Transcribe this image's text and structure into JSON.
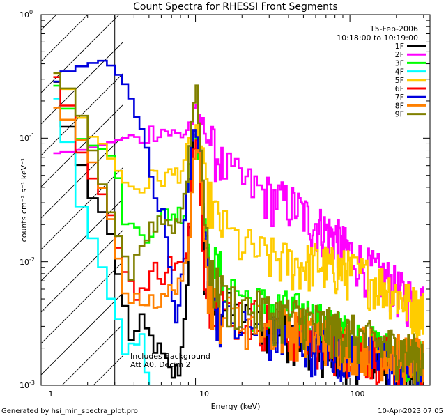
{
  "chart_data": {
    "type": "line",
    "title": "Count Spectra for RHESSI Front Segments",
    "xlabel": "Energy (keV)",
    "ylabel": "counts cm⁻² s⁻¹ keV⁻¹",
    "xscale": "log",
    "yscale": "log",
    "xlim": [
      1.0,
      330.0
    ],
    "ylim": [
      0.001,
      1.0
    ],
    "x_ticks": [
      "1",
      "10",
      "100"
    ],
    "y_ticks": [
      {
        "mantissa": "10",
        "exp": "0"
      },
      {
        "mantissa": "10",
        "exp": "-1"
      },
      {
        "mantissa": "10",
        "exp": "-2"
      },
      {
        "mantissa": "10",
        "exp": "-3"
      }
    ],
    "date": "15-Feb-2006",
    "time_range": "10:18:00 to 10:19:00",
    "annotation_line1": "Includes Background",
    "annotation_line2": "Att A0, Decim 2",
    "attenuator_cutoff_kev": 3.0,
    "series": [
      {
        "name": "1F",
        "color": "#000000",
        "pts": [
          [
            1.2,
            0.38
          ],
          [
            1.35,
            0.2
          ],
          [
            1.5,
            0.12
          ],
          [
            1.7,
            0.08
          ],
          [
            1.9,
            0.052
          ],
          [
            2.1,
            0.034
          ],
          [
            2.3,
            0.03
          ],
          [
            2.55,
            0.024
          ],
          [
            2.8,
            0.018
          ],
          [
            3.1,
            0.009
          ],
          [
            3.4,
            0.005
          ],
          [
            3.7,
            0.0028
          ],
          [
            4.0,
            0.0022
          ],
          [
            4.4,
            0.0033
          ],
          [
            5.0,
            0.0025
          ],
          [
            6.0,
            0.0018
          ],
          [
            7.0,
            0.0012
          ],
          [
            8.0,
            0.0014
          ],
          [
            9.0,
            0.01
          ],
          [
            9.7,
            0.09
          ],
          [
            10.3,
            0.15
          ],
          [
            10.8,
            0.05
          ],
          [
            11.5,
            0.006
          ],
          [
            13,
            0.004
          ],
          [
            16,
            0.004
          ],
          [
            20,
            0.0035
          ],
          [
            25,
            0.003
          ],
          [
            35,
            0.0028
          ],
          [
            50,
            0.0025
          ],
          [
            70,
            0.002
          ],
          [
            100,
            0.0018
          ],
          [
            150,
            0.0017
          ],
          [
            200,
            0.0014
          ],
          [
            300,
            0.0013
          ]
        ]
      },
      {
        "name": "2F",
        "color": "#ff00ff",
        "pts": [
          [
            1.2,
            0.075
          ],
          [
            1.6,
            0.078
          ],
          [
            2.0,
            0.082
          ],
          [
            2.5,
            0.088
          ],
          [
            3.0,
            0.095
          ],
          [
            3.6,
            0.1
          ],
          [
            4.2,
            0.095
          ],
          [
            5.0,
            0.11
          ],
          [
            5.8,
            0.12
          ],
          [
            6.5,
            0.115
          ],
          [
            7.5,
            0.105
          ],
          [
            8.5,
            0.11
          ],
          [
            9.5,
            0.14
          ],
          [
            10.2,
            0.16
          ],
          [
            11,
            0.13
          ],
          [
            12,
            0.11
          ],
          [
            13,
            0.085
          ],
          [
            15,
            0.06
          ],
          [
            18,
            0.048
          ],
          [
            22,
            0.042
          ],
          [
            28,
            0.036
          ],
          [
            35,
            0.032
          ],
          [
            45,
            0.028
          ],
          [
            55,
            0.022
          ],
          [
            70,
            0.018
          ],
          [
            85,
            0.015
          ],
          [
            100,
            0.012
          ],
          [
            130,
            0.009
          ],
          [
            170,
            0.0075
          ],
          [
            220,
            0.0055
          ],
          [
            300,
            0.0045
          ]
        ]
      },
      {
        "name": "3F",
        "color": "#00ff00",
        "pts": [
          [
            1.2,
            0.3
          ],
          [
            1.4,
            0.21
          ],
          [
            1.6,
            0.14
          ],
          [
            1.8,
            0.1
          ],
          [
            2.0,
            0.09
          ],
          [
            2.3,
            0.085
          ],
          [
            2.6,
            0.08
          ],
          [
            2.9,
            0.07
          ],
          [
            3.2,
            0.045
          ],
          [
            3.6,
            0.02
          ],
          [
            4.0,
            0.018
          ],
          [
            4.5,
            0.017
          ],
          [
            5.0,
            0.018
          ],
          [
            5.5,
            0.02
          ],
          [
            6.5,
            0.025
          ],
          [
            7.5,
            0.024
          ],
          [
            8.5,
            0.026
          ],
          [
            9.5,
            0.1
          ],
          [
            10.2,
            0.12
          ],
          [
            11,
            0.045
          ],
          [
            12,
            0.011
          ],
          [
            14,
            0.009
          ],
          [
            18,
            0.006
          ],
          [
            25,
            0.0045
          ],
          [
            35,
            0.0042
          ],
          [
            50,
            0.0038
          ],
          [
            70,
            0.003
          ],
          [
            100,
            0.0025
          ],
          [
            150,
            0.002
          ],
          [
            200,
            0.0018
          ],
          [
            300,
            0.0015
          ]
        ]
      },
      {
        "name": "4F",
        "color": "#00ffff",
        "pts": [
          [
            1.2,
            0.26
          ],
          [
            1.35,
            0.16
          ],
          [
            1.5,
            0.09
          ],
          [
            1.65,
            0.05
          ],
          [
            1.85,
            0.026
          ],
          [
            2.1,
            0.017
          ],
          [
            2.4,
            0.011
          ],
          [
            2.7,
            0.006
          ],
          [
            3.0,
            0.004
          ],
          [
            3.3,
            0.003
          ],
          [
            3.6,
            0.0015
          ],
          [
            4.0,
            0.0022
          ],
          [
            4.5,
            0.0024
          ],
          [
            5.0,
            0.0011
          ],
          [
            5.5,
            0.0008
          ],
          [
            6.0,
            0.0006
          ]
        ]
      },
      {
        "name": "5F",
        "color": "#ffcc00",
        "pts": [
          [
            1.2,
            0.37
          ],
          [
            1.6,
            0.22
          ],
          [
            2.0,
            0.11
          ],
          [
            2.5,
            0.09
          ],
          [
            3.0,
            0.06
          ],
          [
            3.5,
            0.045
          ],
          [
            4.0,
            0.04
          ],
          [
            4.5,
            0.04
          ],
          [
            5.0,
            0.045
          ],
          [
            5.5,
            0.05
          ],
          [
            6.0,
            0.048
          ],
          [
            7.0,
            0.05
          ],
          [
            8.0,
            0.055
          ],
          [
            9.0,
            0.08
          ],
          [
            10.0,
            0.13
          ],
          [
            11,
            0.08
          ],
          [
            12,
            0.035
          ],
          [
            14,
            0.022
          ],
          [
            16,
            0.017
          ],
          [
            20,
            0.014
          ],
          [
            25,
            0.012
          ],
          [
            30,
            0.011
          ],
          [
            40,
            0.01
          ],
          [
            50,
            0.0095
          ],
          [
            60,
            0.01
          ],
          [
            80,
            0.009
          ],
          [
            100,
            0.0085
          ],
          [
            130,
            0.0075
          ],
          [
            170,
            0.0065
          ],
          [
            220,
            0.005
          ],
          [
            300,
            0.004
          ]
        ]
      },
      {
        "name": "6F",
        "color": "#ff0000",
        "pts": [
          [
            1.2,
            0.37
          ],
          [
            1.5,
            0.18
          ],
          [
            1.8,
            0.08
          ],
          [
            2.1,
            0.05
          ],
          [
            2.5,
            0.035
          ],
          [
            2.9,
            0.022
          ],
          [
            3.3,
            0.01
          ],
          [
            3.7,
            0.007
          ],
          [
            4.2,
            0.006
          ],
          [
            4.8,
            0.0058
          ],
          [
            5.5,
            0.009
          ],
          [
            6.2,
            0.008
          ],
          [
            7.0,
            0.01
          ],
          [
            8.0,
            0.009
          ],
          [
            9.0,
            0.011
          ],
          [
            9.8,
            0.1
          ],
          [
            10.5,
            0.09
          ],
          [
            11.5,
            0.006
          ],
          [
            13,
            0.005
          ],
          [
            16,
            0.004
          ],
          [
            20,
            0.0038
          ],
          [
            25,
            0.0035
          ],
          [
            35,
            0.003
          ],
          [
            50,
            0.0025
          ],
          [
            70,
            0.0022
          ],
          [
            100,
            0.002
          ],
          [
            150,
            0.0018
          ],
          [
            200,
            0.0016
          ],
          [
            300,
            0.0015
          ]
        ]
      },
      {
        "name": "7F",
        "color": "#0000dd",
        "pts": [
          [
            1.2,
            0.27
          ],
          [
            1.5,
            0.35
          ],
          [
            1.8,
            0.38
          ],
          [
            2.1,
            0.4
          ],
          [
            2.4,
            0.43
          ],
          [
            2.7,
            0.41
          ],
          [
            3.0,
            0.36
          ],
          [
            3.3,
            0.3
          ],
          [
            3.6,
            0.24
          ],
          [
            4.0,
            0.18
          ],
          [
            4.5,
            0.12
          ],
          [
            5.0,
            0.07
          ],
          [
            5.5,
            0.04
          ],
          [
            6.0,
            0.025
          ],
          [
            6.5,
            0.018
          ],
          [
            7.0,
            0.006
          ],
          [
            7.5,
            0.003
          ],
          [
            8.0,
            0.005
          ],
          [
            8.5,
            0.02
          ],
          [
            9.0,
            0.045
          ],
          [
            9.5,
            0.09
          ],
          [
            10.0,
            0.12
          ],
          [
            10.5,
            0.08
          ],
          [
            11,
            0.032
          ],
          [
            12,
            0.01
          ],
          [
            13,
            0.0045
          ],
          [
            15,
            0.0035
          ],
          [
            20,
            0.003
          ],
          [
            30,
            0.0026
          ],
          [
            50,
            0.0022
          ],
          [
            80,
            0.002
          ],
          [
            120,
            0.0018
          ],
          [
            200,
            0.0015
          ],
          [
            300,
            0.0013
          ]
        ]
      },
      {
        "name": "8F",
        "color": "#ff8000",
        "pts": [
          [
            1.2,
            0.19
          ],
          [
            1.5,
            0.14
          ],
          [
            1.8,
            0.1
          ],
          [
            2.1,
            0.07
          ],
          [
            2.4,
            0.045
          ],
          [
            2.7,
            0.03
          ],
          [
            3.0,
            0.015
          ],
          [
            3.3,
            0.008
          ],
          [
            3.6,
            0.006
          ],
          [
            4.0,
            0.0045
          ],
          [
            4.5,
            0.005
          ],
          [
            5.0,
            0.0055
          ],
          [
            6.0,
            0.0045
          ],
          [
            7.0,
            0.006
          ],
          [
            8.0,
            0.0075
          ],
          [
            9.0,
            0.009
          ],
          [
            9.8,
            0.08
          ],
          [
            10.4,
            0.11
          ],
          [
            11,
            0.04
          ],
          [
            12,
            0.006
          ],
          [
            14,
            0.004
          ],
          [
            18,
            0.0035
          ],
          [
            25,
            0.0032
          ],
          [
            35,
            0.003
          ],
          [
            50,
            0.0028
          ],
          [
            70,
            0.0025
          ],
          [
            100,
            0.0022
          ],
          [
            150,
            0.002
          ],
          [
            200,
            0.0018
          ],
          [
            300,
            0.0016
          ]
        ]
      },
      {
        "name": "9F",
        "color": "#808000",
        "pts": [
          [
            1.2,
            0.37
          ],
          [
            1.5,
            0.25
          ],
          [
            1.8,
            0.16
          ],
          [
            2.1,
            0.09
          ],
          [
            2.4,
            0.05
          ],
          [
            2.7,
            0.03
          ],
          [
            3.0,
            0.02
          ],
          [
            3.4,
            0.012
          ],
          [
            3.8,
            0.008
          ],
          [
            4.2,
            0.012
          ],
          [
            4.7,
            0.015
          ],
          [
            5.2,
            0.02
          ],
          [
            6.0,
            0.022
          ],
          [
            7.0,
            0.02
          ],
          [
            8.0,
            0.022
          ],
          [
            8.8,
            0.05
          ],
          [
            9.5,
            0.15
          ],
          [
            10.2,
            0.23
          ],
          [
            10.8,
            0.1
          ],
          [
            11.5,
            0.02
          ],
          [
            13,
            0.007
          ],
          [
            16,
            0.005
          ],
          [
            20,
            0.0045
          ],
          [
            25,
            0.004
          ],
          [
            35,
            0.0038
          ],
          [
            50,
            0.0035
          ],
          [
            70,
            0.003
          ],
          [
            100,
            0.0026
          ],
          [
            150,
            0.0022
          ],
          [
            200,
            0.002
          ],
          [
            300,
            0.0017
          ]
        ]
      }
    ]
  },
  "footer": {
    "generated_by": "Generated by hsi_min_spectra_plot.pro",
    "timestamp": "10-Apr-2023 07:05"
  }
}
